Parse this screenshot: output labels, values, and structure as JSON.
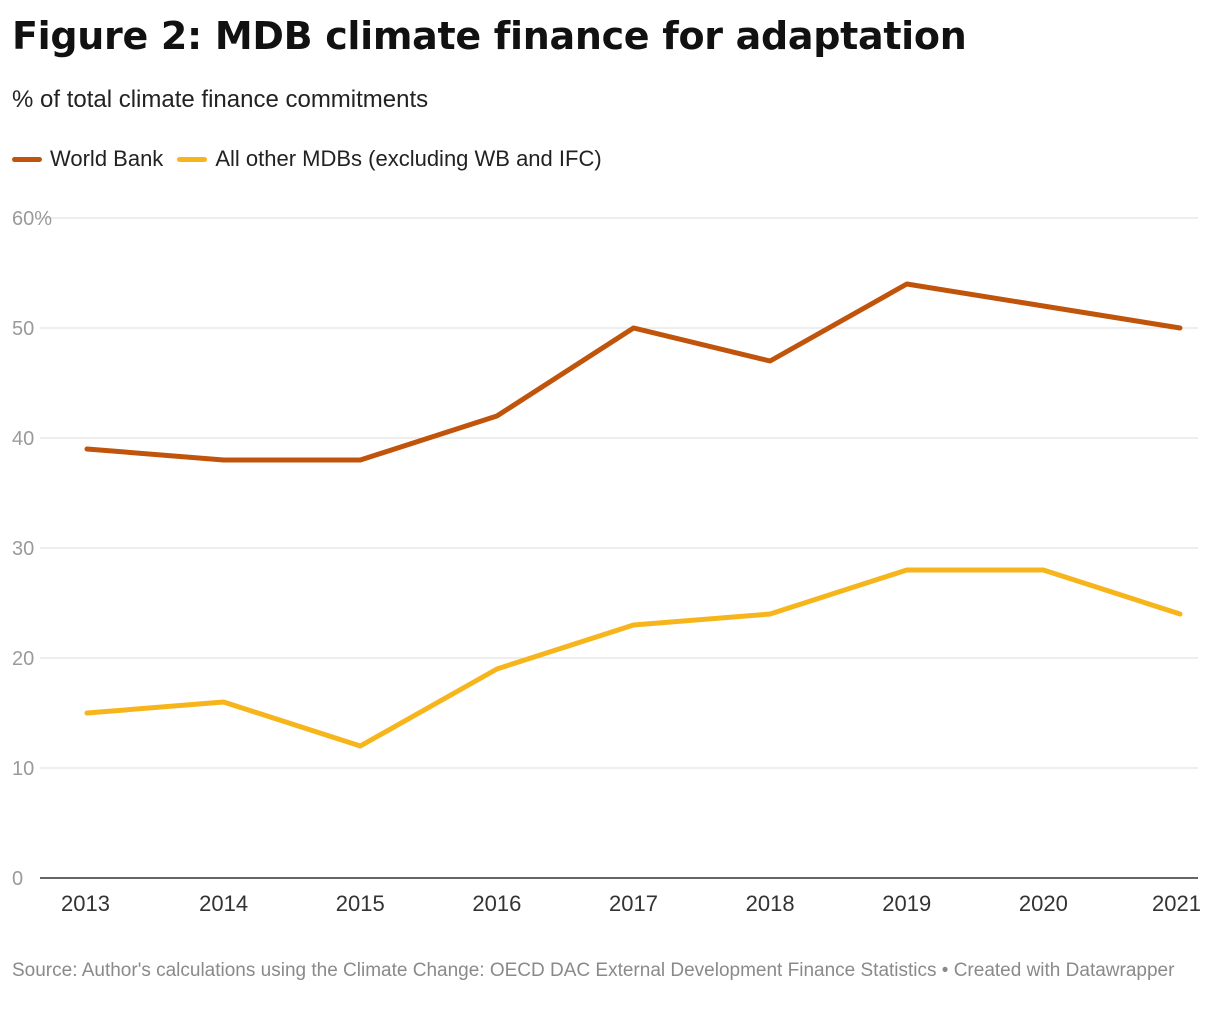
{
  "header": {
    "title": "Figure 2: MDB climate finance for adaptation",
    "subtitle": "% of total climate finance commitments"
  },
  "legend": [
    {
      "label": "World Bank",
      "color": "#c0540a"
    },
    {
      "label": "All other MDBs (excluding WB and IFC)",
      "color": "#f7b51c"
    }
  ],
  "footer": {
    "source": "Source: Author's calculations using the Climate Change: OECD DAC External Development Finance Statistics • Created with Datawrapper"
  },
  "chart_data": {
    "type": "line",
    "x": [
      "2013",
      "2014",
      "2015",
      "2016",
      "2017",
      "2018",
      "2019",
      "2020",
      "2021"
    ],
    "series": [
      {
        "name": "World Bank",
        "color": "#c0540a",
        "values": [
          39,
          38,
          38,
          42,
          50,
          47,
          54,
          52,
          50
        ]
      },
      {
        "name": "All other MDBs (excluding WB and IFC)",
        "color": "#f7b51c",
        "values": [
          15,
          16,
          12,
          19,
          23,
          24,
          28,
          28,
          24
        ]
      }
    ],
    "ylim": [
      0,
      60
    ],
    "yticks": [
      0,
      10,
      20,
      30,
      40,
      50,
      60
    ],
    "ytick_labels": [
      "0",
      "10",
      "20",
      "30",
      "40",
      "50",
      "60%"
    ],
    "xlabel": "",
    "ylabel": "",
    "grid": true
  }
}
